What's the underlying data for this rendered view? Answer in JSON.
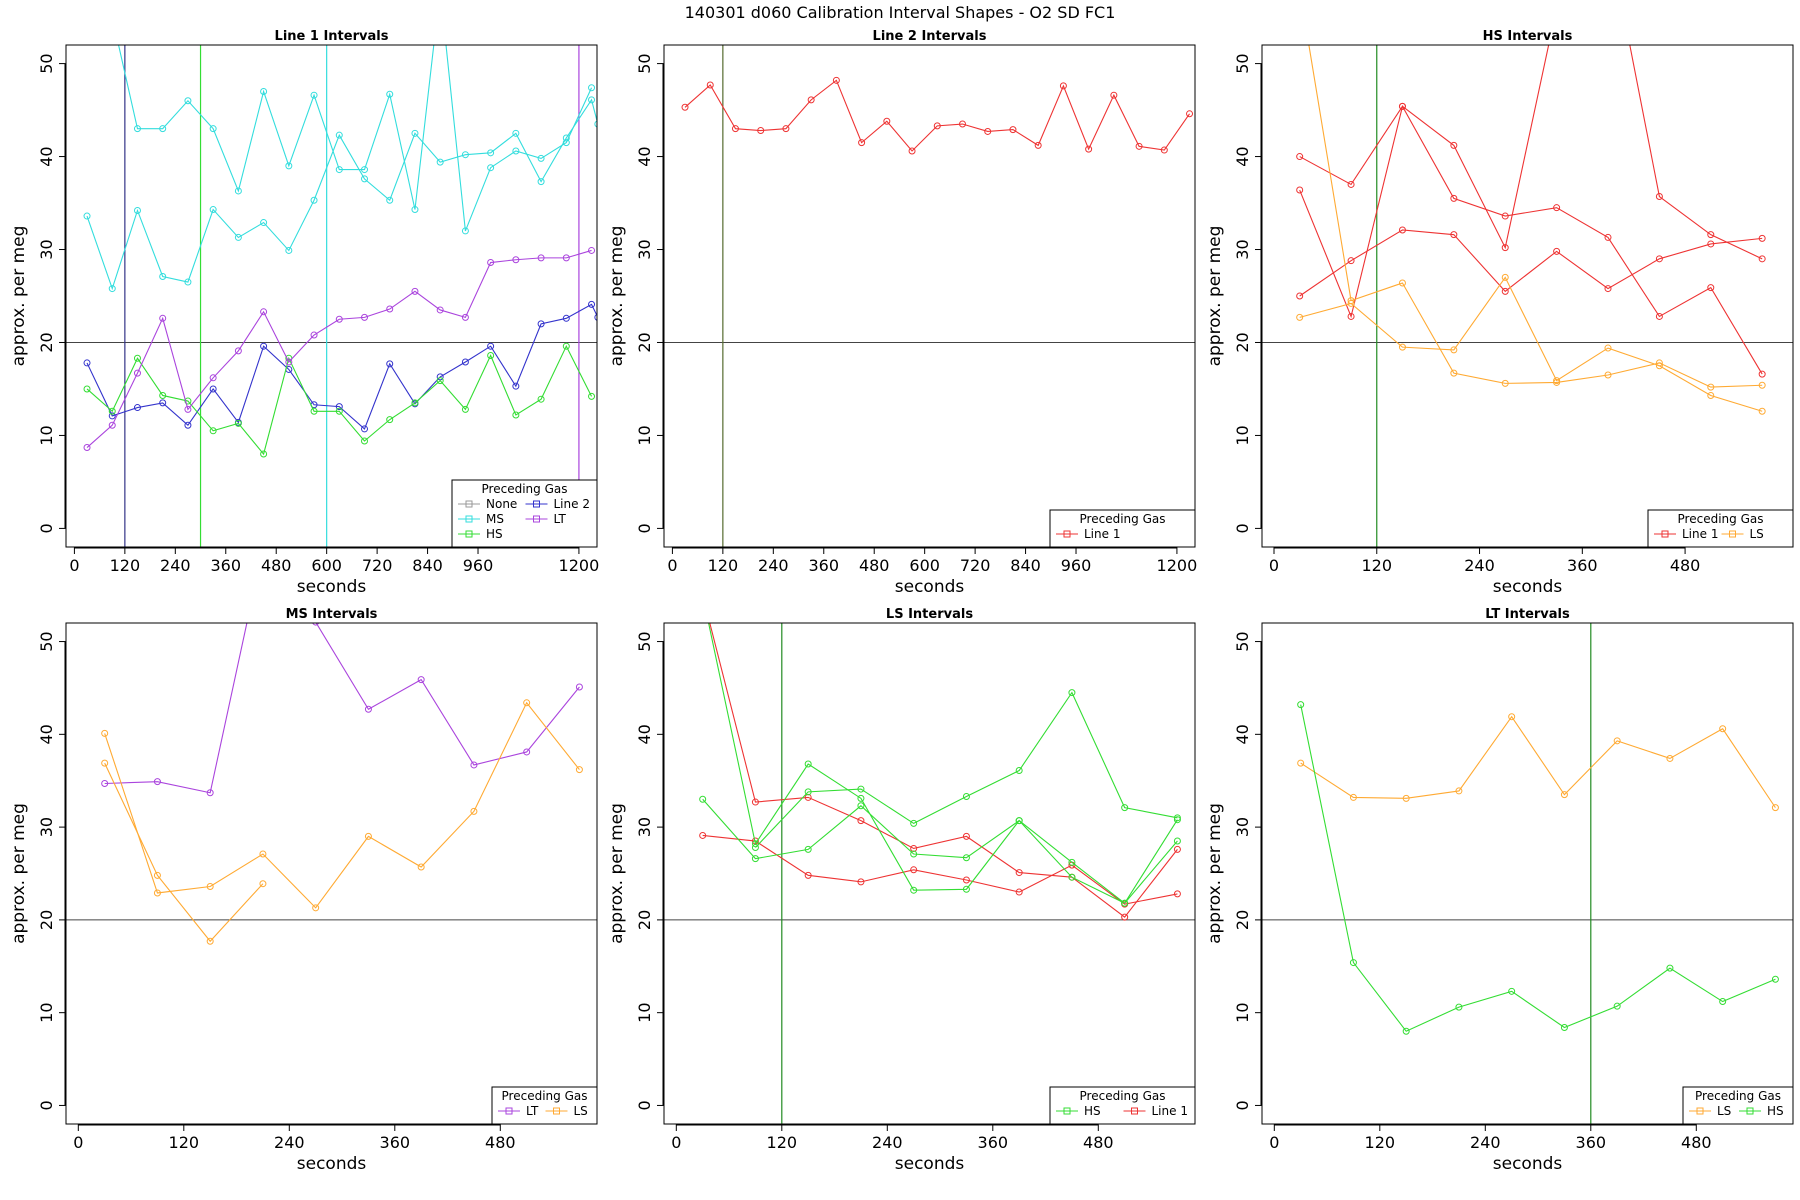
{
  "title": "140301   d060   Calibration Interval Shapes - O2 SD FC1",
  "colors": {
    "None": "#999999",
    "MS": "#33dddd",
    "HS": "#33dd33",
    "Line 2": "#3333cc",
    "LT": "#aa44dd",
    "Line 1": "#ee3333",
    "LS": "#ffaa33"
  },
  "chart_data": [
    {
      "type": "line",
      "title": "Line 1 Intervals",
      "xlabel": "seconds",
      "ylabel": "approx. per meg",
      "xlim": [
        -20,
        1243
      ],
      "ylim": [
        -2,
        52
      ],
      "xticks": [
        0,
        120,
        240,
        360,
        480,
        600,
        720,
        840,
        960,
        1200
      ],
      "yticks": [
        0,
        10,
        20,
        30,
        40,
        50
      ],
      "hline": 20,
      "vlines": [
        {
          "x": 120,
          "color": "#333388"
        },
        {
          "x": 300,
          "color": "#33dd33"
        },
        {
          "x": 600,
          "color": "#33dddd"
        },
        {
          "x": 1200,
          "color": "#aa44dd"
        }
      ],
      "legend": {
        "title": "Preceding Gas",
        "columns": [
          [
            "None",
            "MS",
            "HS"
          ],
          [
            "Line 2",
            "LT"
          ]
        ]
      },
      "series": [
        {
          "name": "MS",
          "color": "#33dddd",
          "x": [
            30,
            90,
            150,
            210,
            270,
            330,
            390,
            450,
            510,
            570,
            630,
            690,
            750,
            810,
            870,
            930,
            990,
            1050,
            1110,
            1170,
            1230
          ],
          "y": [
            60,
            55,
            43,
            43,
            46,
            43,
            36.3,
            47,
            39,
            46.6,
            38.6,
            38.6,
            46.7,
            34.3,
            58,
            32,
            38.8,
            40.6,
            39.8,
            41.5,
            47.4
          ]
        },
        {
          "name": "MS",
          "color": "#33dddd",
          "x": [
            30,
            90,
            150,
            210,
            270,
            330,
            390,
            450,
            510,
            570,
            630,
            690,
            750,
            810,
            870,
            930,
            990,
            1050,
            1110,
            1170,
            1230,
            1245
          ],
          "y": [
            33.6,
            25.8,
            34.2,
            27.1,
            26.5,
            34.3,
            31.3,
            32.9,
            29.9,
            35.3,
            42.3,
            37.6,
            35.3,
            42.5,
            39.4,
            40.2,
            40.4,
            42.5,
            37.3,
            42,
            46.1,
            43.5
          ]
        },
        {
          "name": "Line 2",
          "color": "#3333cc",
          "x": [
            30,
            90,
            150,
            210,
            270,
            330,
            390,
            450,
            510,
            570,
            630,
            690,
            750,
            810,
            870,
            930,
            990,
            1050,
            1110,
            1170,
            1230,
            1245
          ],
          "y": [
            17.8,
            12.1,
            13,
            13.5,
            11.1,
            15,
            11.4,
            19.6,
            17.1,
            13.3,
            13.1,
            10.7,
            17.7,
            13.4,
            16.3,
            17.9,
            19.6,
            15.3,
            22,
            22.6,
            24.1,
            22.7
          ]
        },
        {
          "name": "HS",
          "color": "#33dd33",
          "x": [
            30,
            90,
            150,
            210,
            270,
            330,
            390,
            450,
            510,
            570,
            630,
            690,
            750,
            810,
            870,
            930,
            990,
            1050,
            1110,
            1170,
            1230
          ],
          "y": [
            15,
            12.6,
            18.3,
            14.3,
            13.7,
            10.5,
            11.3,
            8,
            18.3,
            12.6,
            12.6,
            9.4,
            11.7,
            13.5,
            15.9,
            12.8,
            18.6,
            12.2,
            13.9,
            19.6,
            14.2
          ]
        },
        {
          "name": "LT",
          "color": "#aa44dd",
          "x": [
            30,
            90,
            150,
            210,
            270,
            330,
            390,
            450,
            510,
            570,
            630,
            690,
            750,
            810,
            870,
            930,
            990,
            1050,
            1110,
            1170,
            1230
          ],
          "y": [
            8.7,
            11.1,
            16.7,
            22.6,
            12.8,
            16.2,
            19.1,
            23.3,
            17.9,
            20.8,
            22.5,
            22.7,
            23.6,
            25.5,
            23.5,
            22.7,
            28.6,
            28.9,
            29.1,
            29.1,
            29.9
          ]
        }
      ]
    },
    {
      "type": "line",
      "title": "Line 2 Intervals",
      "xlabel": "seconds",
      "ylabel": "approx. per meg",
      "xlim": [
        -20,
        1243
      ],
      "ylim": [
        -2,
        52
      ],
      "xticks": [
        0,
        120,
        240,
        360,
        480,
        600,
        720,
        840,
        960,
        1200
      ],
      "yticks": [
        0,
        10,
        20,
        30,
        40,
        50
      ],
      "hline": 20,
      "vlines": [
        {
          "x": 120,
          "color": "#556b2f"
        }
      ],
      "legend": {
        "title": "Preceding Gas",
        "columns": [
          [
            "Line 1"
          ]
        ]
      },
      "series": [
        {
          "name": "Line 1",
          "color": "#ee3333",
          "x": [
            30,
            90,
            150,
            210,
            270,
            330,
            390,
            450,
            510,
            570,
            630,
            690,
            750,
            810,
            870,
            930,
            990,
            1050,
            1110,
            1170,
            1230
          ],
          "y": [
            45.3,
            47.7,
            43,
            42.8,
            43,
            46.1,
            48.2,
            41.5,
            43.8,
            40.6,
            43.3,
            43.5,
            42.7,
            42.9,
            41.2,
            47.6,
            40.8,
            46.6,
            41.1,
            40.7,
            44.6
          ]
        }
      ]
    },
    {
      "type": "line",
      "title": "HS Intervals",
      "xlabel": "seconds",
      "ylabel": "approx. per meg",
      "xlim": [
        -14,
        606
      ],
      "ylim": [
        -2,
        52
      ],
      "xticks": [
        0,
        120,
        240,
        360,
        480
      ],
      "yticks": [
        0,
        10,
        20,
        30,
        40,
        50
      ],
      "hline": 20,
      "vlines": [
        {
          "x": 120,
          "color": "#228b22"
        }
      ],
      "legend": {
        "title": "Preceding Gas",
        "columns": [
          [
            "Line 1"
          ],
          [
            "LS"
          ]
        ]
      },
      "series": [
        {
          "name": "Line 1",
          "color": "#ee3333",
          "x": [
            30,
            90,
            150,
            210,
            270,
            330,
            390,
            450,
            510,
            570
          ],
          "y": [
            40,
            37,
            45.4,
            41.2,
            30.2,
            56,
            64,
            35.7,
            31.6,
            29
          ]
        },
        {
          "name": "Line 1",
          "color": "#ee3333",
          "x": [
            30,
            90,
            150,
            210,
            270,
            330,
            390,
            450,
            510,
            570
          ],
          "y": [
            36.4,
            22.8,
            45.4,
            35.5,
            33.6,
            34.5,
            31.3,
            22.8,
            25.9,
            16.6
          ]
        },
        {
          "name": "Line 1",
          "color": "#ee3333",
          "x": [
            30,
            90,
            150,
            210,
            270,
            330,
            390,
            450,
            510,
            570
          ],
          "y": [
            25,
            28.8,
            32.1,
            31.6,
            25.5,
            29.8,
            25.8,
            29,
            30.6,
            31.2
          ]
        },
        {
          "name": "LS",
          "color": "#ffaa33",
          "x": [
            30,
            90,
            150,
            210,
            270,
            330,
            390,
            450,
            510,
            570
          ],
          "y": [
            58,
            24.5,
            26.4,
            16.7,
            15.6,
            15.7,
            16.5,
            17.8,
            15.2,
            15.4
          ]
        },
        {
          "name": "LS",
          "color": "#ffaa33",
          "x": [
            30,
            90,
            150,
            210,
            270,
            330,
            390,
            450,
            510,
            570
          ],
          "y": [
            22.7,
            24.2,
            19.5,
            19.2,
            27,
            15.9,
            19.4,
            17.5,
            14.3,
            12.6
          ]
        }
      ]
    },
    {
      "type": "line",
      "title": "MS Intervals",
      "xlabel": "seconds",
      "ylabel": "approx. per meg",
      "xlim": [
        -14,
        590
      ],
      "ylim": [
        -2,
        52
      ],
      "xticks": [
        0,
        120,
        240,
        360,
        480
      ],
      "yticks": [
        0,
        10,
        20,
        30,
        40,
        50
      ],
      "hline": 20,
      "vlines": [],
      "legend": {
        "title": "Preceding Gas",
        "columns": [
          [
            "LT"
          ],
          [
            "LS"
          ]
        ]
      },
      "series": [
        {
          "name": "LT",
          "color": "#aa44dd",
          "x": [
            30,
            90,
            150,
            210,
            270,
            330,
            390,
            450,
            510,
            570
          ],
          "y": [
            34.7,
            34.9,
            33.7,
            60,
            52.1,
            42.7,
            45.9,
            36.7,
            38.1,
            45.1
          ]
        },
        {
          "name": "LS",
          "color": "#ffaa33",
          "x": [
            30,
            90,
            150,
            210,
            270,
            330,
            390,
            450,
            510,
            570
          ],
          "y": [
            40.1,
            22.9,
            23.6,
            27.1,
            21.3,
            29,
            25.7,
            31.7,
            43.4,
            36.2
          ]
        },
        {
          "name": "LS",
          "color": "#ffaa33",
          "x": [
            30,
            90,
            150,
            210
          ],
          "y": [
            36.9,
            24.8,
            17.7,
            23.9
          ]
        }
      ]
    },
    {
      "type": "line",
      "title": "LS Intervals",
      "xlabel": "seconds",
      "ylabel": "approx. per meg",
      "xlim": [
        -14,
        590
      ],
      "ylim": [
        -2,
        52
      ],
      "xticks": [
        0,
        120,
        240,
        360,
        480
      ],
      "yticks": [
        0,
        10,
        20,
        30,
        40,
        50
      ],
      "hline": 20,
      "vlines": [
        {
          "x": 120,
          "color": "#228b22"
        }
      ],
      "legend": {
        "title": "Preceding Gas",
        "columns": [
          [
            "HS"
          ],
          [
            "Line 1"
          ]
        ]
      },
      "series": [
        {
          "name": "Line 1",
          "color": "#ee3333",
          "x": [
            30,
            90,
            150,
            210,
            270,
            330,
            390,
            450,
            510,
            570
          ],
          "y": [
            55,
            32.7,
            33.2,
            30.7,
            27.7,
            29,
            25.1,
            24.6,
            20.3,
            27.6
          ]
        },
        {
          "name": "Line 1",
          "color": "#ee3333",
          "x": [
            30,
            90,
            150,
            210,
            270,
            330,
            390,
            450,
            510,
            570
          ],
          "y": [
            29.1,
            28.5,
            24.8,
            24.1,
            25.4,
            24.3,
            23,
            25.9,
            21.7,
            22.8
          ]
        },
        {
          "name": "HS",
          "color": "#33dd33",
          "x": [
            30,
            90,
            150,
            210,
            270,
            330,
            390,
            450,
            510,
            570
          ],
          "y": [
            55,
            28.2,
            36.8,
            33.1,
            23.2,
            23.3,
            30.7,
            24.6,
            21.8,
            28.5
          ]
        },
        {
          "name": "HS",
          "color": "#33dd33",
          "x": [
            30,
            90,
            150,
            210,
            270,
            330,
            390,
            450,
            510,
            570
          ],
          "y": [
            33,
            26.6,
            27.6,
            32.3,
            27.1,
            26.7,
            30.7,
            26.2,
            21.8,
            30.8
          ]
        },
        {
          "name": "HS",
          "color": "#33dd33",
          "x": [
            90,
            150,
            210,
            270,
            330,
            390,
            450,
            510,
            570
          ],
          "y": [
            27.8,
            33.8,
            34.1,
            30.4,
            33.3,
            36.1,
            44.5,
            32.1,
            31
          ]
        }
      ]
    },
    {
      "type": "line",
      "title": "LT Intervals",
      "xlabel": "seconds",
      "ylabel": "approx. per meg",
      "xlim": [
        -14,
        590
      ],
      "ylim": [
        -2,
        52
      ],
      "xticks": [
        0,
        120,
        240,
        360,
        480
      ],
      "yticks": [
        0,
        10,
        20,
        30,
        40,
        50
      ],
      "hline": 20,
      "vlines": [
        {
          "x": 360,
          "color": "#228b22"
        }
      ],
      "legend": {
        "title": "Preceding Gas",
        "columns": [
          [
            "LS"
          ],
          [
            "HS"
          ]
        ]
      },
      "series": [
        {
          "name": "LS",
          "color": "#ffaa33",
          "x": [
            30,
            90,
            150,
            210,
            270,
            330,
            390,
            450,
            510,
            570
          ],
          "y": [
            36.9,
            33.2,
            33.1,
            33.9,
            41.9,
            33.5,
            39.3,
            37.4,
            40.6,
            32.1
          ]
        },
        {
          "name": "HS",
          "color": "#33dd33",
          "x": [
            30,
            90,
            150,
            210,
            270,
            330,
            390,
            450,
            510,
            570
          ],
          "y": [
            43.2,
            15.4,
            8,
            10.6,
            12.3,
            8.4,
            10.7,
            14.8,
            11.2,
            13.6
          ]
        }
      ]
    }
  ]
}
